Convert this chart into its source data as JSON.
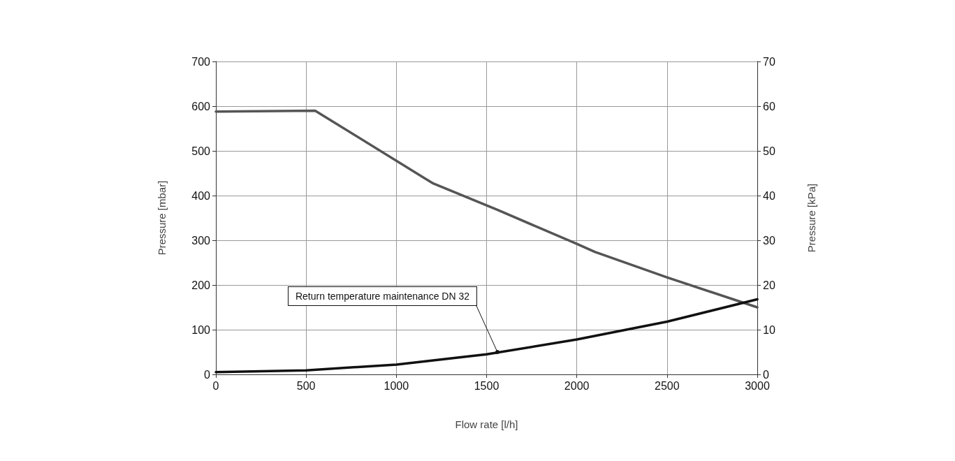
{
  "chart_data": {
    "type": "line",
    "xlabel": "Flow rate [l/h]",
    "ylabel": "Pressure [mbar]",
    "y2label": "Pressure [kPa]",
    "xlim": [
      0,
      3000
    ],
    "xticks": [
      0,
      500,
      1000,
      1500,
      2000,
      2500,
      3000
    ],
    "ylim": [
      0,
      700
    ],
    "yticks": [
      0,
      100,
      200,
      300,
      400,
      500,
      600,
      700
    ],
    "y2lim": [
      0,
      70
    ],
    "y2ticks": [
      0,
      10,
      20,
      30,
      40,
      50,
      60,
      70
    ],
    "grid": true,
    "marker": "none",
    "line_style": "solid",
    "series": [
      {
        "color": "#555555",
        "x": [
          0,
          550,
          1200,
          1560,
          2000,
          2100,
          2500,
          3000
        ],
        "values": [
          588,
          590,
          428,
          368,
          292,
          274,
          217,
          150
        ]
      },
      {
        "color": "#111111",
        "x": [
          0,
          500,
          1000,
          1500,
          2000,
          2500,
          3000
        ],
        "values": [
          5,
          9,
          22,
          45,
          78,
          118,
          168
        ]
      }
    ],
    "annotations": [
      {
        "text": "Return temperature maintenance DN 32",
        "x": 1560,
        "y": 50
      }
    ]
  }
}
